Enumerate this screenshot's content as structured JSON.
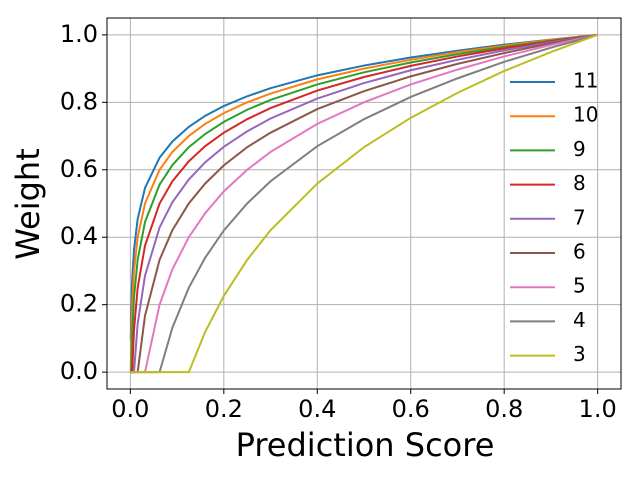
{
  "chart_data": {
    "type": "line",
    "xlabel": "Prediction Score",
    "ylabel": "Weight",
    "xlim": [
      -0.05,
      1.05
    ],
    "ylim": [
      -0.05,
      1.05
    ],
    "xticks": [
      {
        "value": 0,
        "label": "0.0"
      },
      0.2,
      0.4,
      0.6,
      0.8,
      {
        "value": 1,
        "label": "1.0"
      }
    ],
    "yticks": [
      {
        "value": 0,
        "label": "0.0"
      },
      0.2,
      0.4,
      0.6,
      0.8,
      {
        "value": 1,
        "label": "1.0"
      }
    ],
    "grid": true,
    "legend": "right",
    "x": [
      0.001,
      0.00195,
      0.0039,
      0.0078,
      0.0156,
      0.0313,
      0.0625,
      0.09,
      0.125,
      0.16,
      0.2,
      0.25,
      0.3,
      0.4,
      0.5,
      0.6,
      0.7,
      0.8,
      0.9,
      1.0
    ],
    "series": [
      {
        "name": "11",
        "color": "#1f77b4",
        "values": [
          0.094,
          0.182,
          0.273,
          0.363,
          0.454,
          0.546,
          0.636,
          0.684,
          0.727,
          0.76,
          0.789,
          0.818,
          0.842,
          0.88,
          0.909,
          0.933,
          0.953,
          0.971,
          0.986,
          1
        ]
      },
      {
        "name": "10",
        "color": "#ff7f0e",
        "values": [
          0.003,
          0.1,
          0.2,
          0.3,
          0.4,
          0.5,
          0.6,
          0.653,
          0.7,
          0.736,
          0.768,
          0.8,
          0.826,
          0.868,
          0.9,
          0.926,
          0.949,
          0.968,
          0.985,
          1
        ]
      },
      {
        "name": "9",
        "color": "#2ca02c",
        "values": [
          0,
          0,
          0.111,
          0.222,
          0.333,
          0.445,
          0.556,
          0.614,
          0.667,
          0.706,
          0.742,
          0.778,
          0.807,
          0.853,
          0.889,
          0.918,
          0.943,
          0.964,
          0.983,
          1
        ]
      },
      {
        "name": "8",
        "color": "#d62728",
        "values": [
          0,
          0,
          0,
          0.125,
          0.25,
          0.375,
          0.5,
          0.566,
          0.625,
          0.67,
          0.71,
          0.75,
          0.783,
          0.835,
          0.875,
          0.908,
          0.936,
          0.96,
          0.981,
          1
        ]
      },
      {
        "name": "7",
        "color": "#9467bd",
        "values": [
          0,
          0,
          0,
          0,
          0.143,
          0.286,
          0.429,
          0.504,
          0.571,
          0.622,
          0.668,
          0.714,
          0.752,
          0.811,
          0.857,
          0.895,
          0.926,
          0.954,
          0.978,
          1
        ]
      },
      {
        "name": "6",
        "color": "#8c564b",
        "values": [
          0,
          0,
          0,
          0,
          0,
          0.167,
          0.333,
          0.421,
          0.5,
          0.559,
          0.613,
          0.667,
          0.71,
          0.78,
          0.833,
          0.877,
          0.914,
          0.946,
          0.975,
          1
        ]
      },
      {
        "name": "5",
        "color": "#e377c2",
        "values": [
          0,
          0,
          0,
          0,
          0,
          0,
          0.2,
          0.305,
          0.4,
          0.471,
          0.536,
          0.6,
          0.653,
          0.736,
          0.8,
          0.853,
          0.897,
          0.936,
          0.97,
          1
        ]
      },
      {
        "name": "4",
        "color": "#7f7f7f",
        "values": [
          0,
          0,
          0,
          0,
          0,
          0,
          0,
          0.132,
          0.25,
          0.339,
          0.42,
          0.5,
          0.566,
          0.67,
          0.75,
          0.816,
          0.871,
          0.92,
          0.962,
          1
        ]
      },
      {
        "name": "3",
        "color": "#bcbd22",
        "values": [
          0,
          0,
          0,
          0,
          0,
          0,
          0,
          0,
          0,
          0.119,
          0.226,
          0.333,
          0.421,
          0.559,
          0.667,
          0.754,
          0.828,
          0.893,
          0.949,
          1
        ]
      }
    ]
  }
}
